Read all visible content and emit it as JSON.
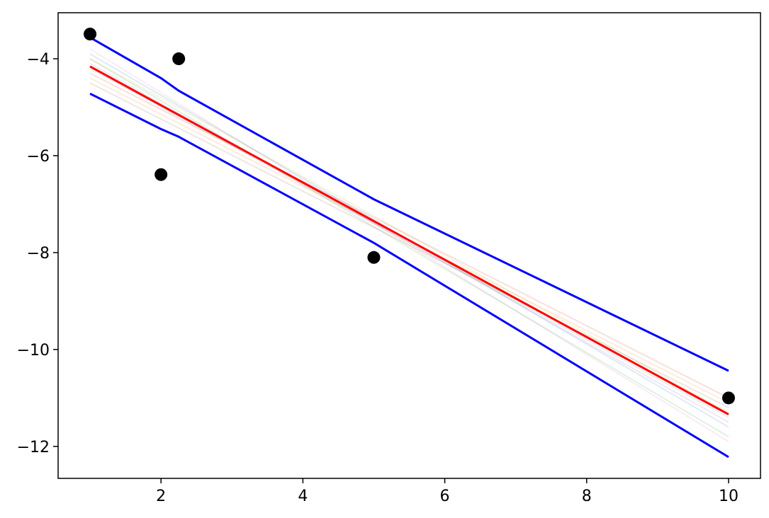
{
  "chart_data": {
    "type": "line",
    "xlim": [
      0.55,
      10.45
    ],
    "ylim": [
      -12.66,
      -3.05
    ],
    "xticks": [
      2,
      4,
      6,
      8,
      10
    ],
    "yticks": [
      {
        "value": -4,
        "label": "−4"
      },
      {
        "value": -6,
        "label": "−6"
      },
      {
        "value": -8,
        "label": "−8"
      },
      {
        "value": -10,
        "label": "−10"
      },
      {
        "value": -12,
        "label": "−12"
      }
    ],
    "series": [
      {
        "kind": "line",
        "color": "#1f77b4",
        "opacity": 0.15,
        "x": [
          1,
          10
        ],
        "values": [
          -3.9,
          -11.6
        ]
      },
      {
        "kind": "line",
        "color": "#ff7f0e",
        "opacity": 0.15,
        "x": [
          1,
          10
        ],
        "values": [
          -4.4,
          -11.1
        ]
      },
      {
        "kind": "line",
        "color": "#2ca02c",
        "opacity": 0.15,
        "x": [
          1,
          10
        ],
        "values": [
          -4.0,
          -11.8
        ]
      },
      {
        "kind": "line",
        "color": "#d62728",
        "opacity": 0.15,
        "x": [
          1,
          10
        ],
        "values": [
          -4.3,
          -11.0
        ]
      },
      {
        "kind": "line",
        "color": "#9467bd",
        "opacity": 0.15,
        "x": [
          1,
          10
        ],
        "values": [
          -4.1,
          -11.5
        ]
      },
      {
        "kind": "line",
        "color": "#8c564b",
        "opacity": 0.15,
        "x": [
          1,
          10
        ],
        "values": [
          -4.5,
          -11.2
        ]
      },
      {
        "kind": "line",
        "color": "#e377c2",
        "opacity": 0.15,
        "x": [
          1,
          10
        ],
        "values": [
          -3.8,
          -11.9
        ]
      },
      {
        "kind": "line",
        "color": "#7f7f7f",
        "opacity": 0.15,
        "x": [
          1,
          10
        ],
        "values": [
          -4.2,
          -11.4
        ]
      },
      {
        "kind": "line",
        "color": "#bcbd22",
        "opacity": 0.15,
        "x": [
          1,
          10
        ],
        "values": [
          -4.0,
          -11.3
        ]
      },
      {
        "kind": "line",
        "color": "#0000ff",
        "opacity": 1,
        "x": [
          1,
          2,
          2.25,
          5,
          10
        ],
        "values": [
          -3.56,
          -4.4,
          -4.66,
          -6.9,
          -10.44
        ]
      },
      {
        "kind": "line",
        "color": "#0000ff",
        "opacity": 1,
        "x": [
          1,
          2,
          2.25,
          5,
          10
        ],
        "values": [
          -4.72,
          -5.45,
          -5.61,
          -7.8,
          -12.22
        ]
      },
      {
        "kind": "line",
        "color": "#ff0000",
        "opacity": 1,
        "x": [
          1,
          2,
          2.25,
          5,
          10
        ],
        "values": [
          -4.16,
          -4.96,
          -5.16,
          -7.35,
          -11.34
        ]
      },
      {
        "kind": "scatter",
        "color": "#000000",
        "opacity": 1,
        "x": [
          1,
          2.25,
          2,
          5,
          10
        ],
        "values": [
          -3.49,
          -4.0,
          -6.39,
          -8.1,
          -11.0
        ]
      }
    ]
  }
}
